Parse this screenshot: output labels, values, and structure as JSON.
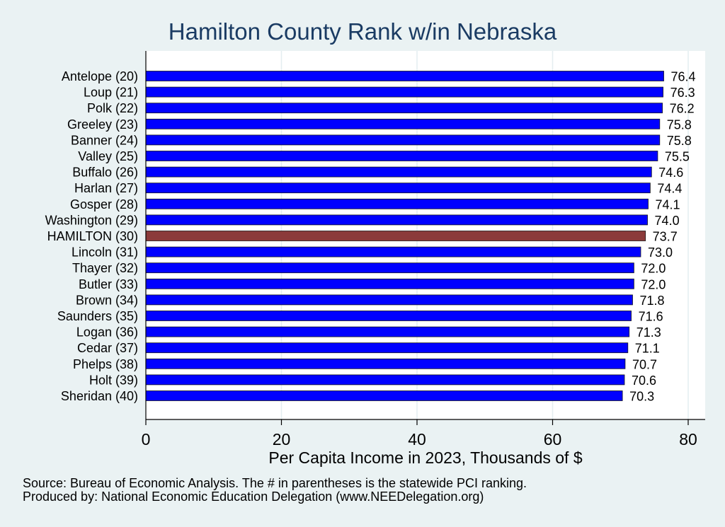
{
  "chart_data": {
    "type": "bar",
    "orientation": "horizontal",
    "title": "Hamilton County Rank w/in Nebraska",
    "xlabel": "Per Capita Income in 2023, Thousands of $",
    "xlim": [
      0,
      82
    ],
    "xticks": [
      0,
      20,
      40,
      60,
      80
    ],
    "grid": true,
    "categories": [
      "Antelope (20)",
      "Loup (21)",
      "Polk (22)",
      "Greeley (23)",
      "Banner (24)",
      "Valley (25)",
      "Buffalo (26)",
      "Harlan (27)",
      "Gosper (28)",
      "Washington (29)",
      "HAMILTON (30)",
      "Lincoln (31)",
      "Thayer (32)",
      "Butler (33)",
      "Brown (34)",
      "Saunders (35)",
      "Logan (36)",
      "Cedar (37)",
      "Phelps (38)",
      "Holt (39)",
      "Sheridan (40)"
    ],
    "values": [
      76.4,
      76.3,
      76.2,
      75.8,
      75.8,
      75.5,
      74.6,
      74.4,
      74.1,
      74.0,
      73.7,
      73.0,
      72.0,
      72.0,
      71.8,
      71.6,
      71.3,
      71.1,
      70.7,
      70.6,
      70.3
    ],
    "value_labels": [
      "76.4",
      "76.3",
      "76.2",
      "75.8",
      "75.8",
      "75.5",
      "74.6",
      "74.4",
      "74.1",
      "74.0",
      "73.7",
      "73.0",
      "72.0",
      "72.0",
      "71.8",
      "71.6",
      "71.3",
      "71.1",
      "70.7",
      "70.6",
      "70.3"
    ],
    "highlight_index": 10,
    "colors": {
      "bar": "#0000ff",
      "highlight": "#8b3a3a",
      "plot_bg": "#ffffff",
      "page_bg": "#eaf2f3",
      "grid": "#e4eef0",
      "title": "#1a3b63"
    }
  },
  "notes": {
    "source": "Source: Bureau of Economic Analysis. The # in parentheses is the statewide PCI ranking.",
    "produced_by": "Produced by: National Economic Education Delegation (www.NEEDelegation.org)"
  }
}
